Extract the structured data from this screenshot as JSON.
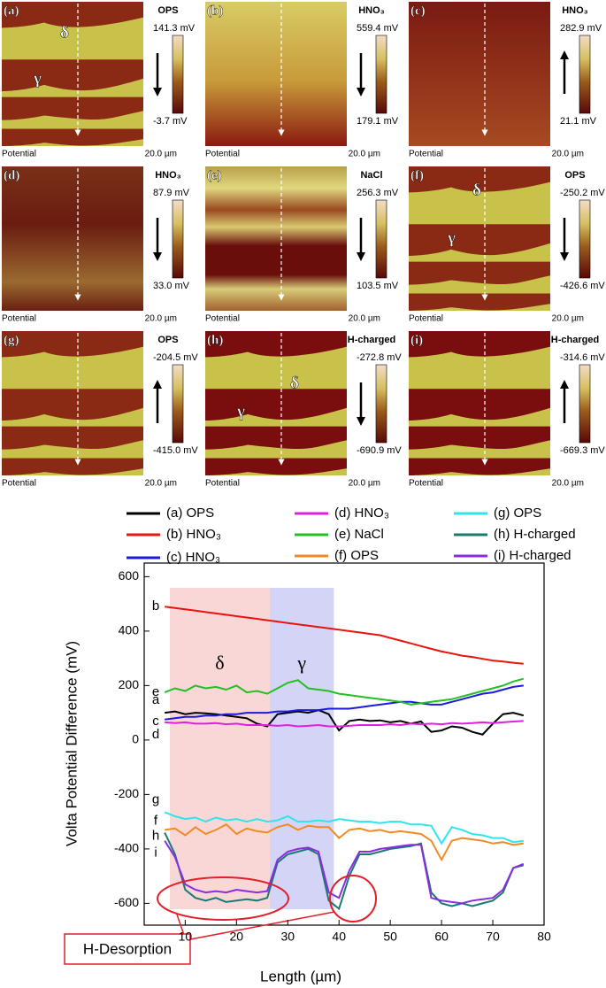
{
  "panels": [
    {
      "label": "(a)",
      "condition": "OPS",
      "max": "141.3 mV",
      "min": "-3.7 mV",
      "arrow": "down",
      "caption": "Potential",
      "scale": "20.0 µm",
      "phases": [
        "δ",
        "γ"
      ]
    },
    {
      "label": "(b)",
      "condition": "HNO₃",
      "max": "559.4 mV",
      "min": "179.1 mV",
      "arrow": "down",
      "caption": "Potential",
      "scale": "20.0 µm"
    },
    {
      "label": "(c)",
      "condition": "HNO₃",
      "max": "282.9 mV",
      "min": "21.1 mV",
      "arrow": "up",
      "caption": "Potential",
      "scale": "20.0 µm"
    },
    {
      "label": "(d)",
      "condition": "HNO₃",
      "max": "87.9 mV",
      "min": "33.0 mV",
      "arrow": "down",
      "caption": "Potential",
      "scale": "20.0 µm"
    },
    {
      "label": "(e)",
      "condition": "NaCl",
      "max": "256.3 mV",
      "min": "103.5 mV",
      "arrow": "down",
      "caption": "Potential",
      "scale": "20.0 µm"
    },
    {
      "label": "(f)",
      "condition": "OPS",
      "max": "-250.2 mV",
      "min": "-426.6 mV",
      "arrow": "down",
      "caption": "Potential",
      "scale": "20.0 µm",
      "phases": [
        "δ",
        "γ"
      ]
    },
    {
      "label": "(g)",
      "condition": "OPS",
      "max": "-204.5 mV",
      "min": "-415.0 mV",
      "arrow": "up",
      "caption": "Potential",
      "scale": "20.0 µm"
    },
    {
      "label": "(h)",
      "condition": "H-charged",
      "max": "-272.8 mV",
      "min": "-690.9 mV",
      "arrow": "down",
      "caption": "Potential",
      "scale": "20.0 µm",
      "phases": [
        "δ",
        "γ"
      ]
    },
    {
      "label": "(i)",
      "condition": "H-charged",
      "max": "-314.6 mV",
      "min": "-669.3 mV",
      "arrow": "up",
      "caption": "Potential",
      "scale": "20.0 µm"
    }
  ],
  "chart_data": {
    "type": "line",
    "xlabel": "Length (µm)",
    "ylabel": "Volta Potential Difference (mV)",
    "xlim": [
      2,
      80
    ],
    "xticks": [
      10,
      20,
      30,
      40,
      50,
      60,
      70,
      80
    ],
    "ylim": [
      -680,
      650
    ],
    "yticks": [
      -600,
      -400,
      -200,
      0,
      200,
      400,
      600
    ],
    "regions": [
      {
        "label": "δ",
        "start": 7,
        "end": 26.5,
        "color": "#f9d3d3"
      },
      {
        "label": "γ",
        "start": 26.5,
        "end": 39,
        "color": "#cfd0f5"
      }
    ],
    "annotation": "H-Desorption",
    "x": [
      6,
      8,
      10,
      12,
      14,
      16,
      18,
      20,
      22,
      24,
      26,
      28,
      30,
      32,
      34,
      36,
      38,
      40,
      42,
      44,
      46,
      48,
      50,
      52,
      54,
      56,
      58,
      60,
      62,
      64,
      66,
      68,
      70,
      72,
      74,
      76
    ],
    "series": [
      {
        "name": "(a) OPS",
        "label": "a",
        "color": "#000000",
        "values": [
          100,
          105,
          95,
          100,
          98,
          95,
          90,
          85,
          80,
          60,
          50,
          95,
          100,
          105,
          100,
          110,
          95,
          35,
          70,
          75,
          70,
          72,
          65,
          70,
          60,
          68,
          30,
          35,
          50,
          45,
          30,
          20,
          60,
          95,
          100,
          90
        ]
      },
      {
        "name": "(b) HNO₃",
        "label": "b",
        "color": "#e8140f",
        "values": [
          490,
          485,
          480,
          475,
          470,
          465,
          460,
          455,
          450,
          445,
          440,
          435,
          430,
          425,
          420,
          415,
          410,
          405,
          400,
          395,
          390,
          385,
          375,
          365,
          355,
          345,
          335,
          325,
          318,
          310,
          305,
          298,
          292,
          288,
          284,
          280
        ]
      },
      {
        "name": "(c) HNO₃",
        "label": "c",
        "color": "#1a1ae0",
        "values": [
          75,
          80,
          85,
          85,
          90,
          90,
          95,
          95,
          100,
          100,
          100,
          105,
          105,
          110,
          110,
          110,
          115,
          115,
          115,
          120,
          125,
          130,
          135,
          140,
          140,
          135,
          130,
          130,
          140,
          150,
          160,
          170,
          175,
          185,
          195,
          200
        ]
      },
      {
        "name": "(d) HNO₃",
        "label": "d",
        "color": "#e020e0",
        "values": [
          65,
          62,
          65,
          60,
          60,
          62,
          58,
          60,
          55,
          55,
          55,
          52,
          55,
          50,
          52,
          55,
          50,
          50,
          52,
          55,
          55,
          55,
          58,
          55,
          60,
          58,
          60,
          58,
          62,
          60,
          62,
          65,
          62,
          65,
          68,
          70
        ]
      },
      {
        "name": "(e) NaCl",
        "label": "e",
        "color": "#22c022",
        "values": [
          175,
          190,
          180,
          200,
          190,
          195,
          185,
          200,
          175,
          180,
          170,
          190,
          210,
          220,
          190,
          185,
          180,
          170,
          165,
          160,
          155,
          150,
          145,
          140,
          130,
          135,
          140,
          145,
          150,
          160,
          170,
          180,
          190,
          200,
          215,
          225
        ]
      },
      {
        "name": "(f) OPS",
        "label": "f",
        "color": "#f08a24",
        "values": [
          -330,
          -325,
          -350,
          -320,
          -345,
          -330,
          -310,
          -345,
          -325,
          -335,
          -340,
          -320,
          -310,
          -330,
          -315,
          -320,
          -320,
          -360,
          -330,
          -325,
          -335,
          -330,
          -340,
          -335,
          -340,
          -345,
          -370,
          -440,
          -370,
          -360,
          -365,
          -370,
          -380,
          -375,
          -385,
          -380
        ]
      },
      {
        "name": "(g) OPS",
        "label": "g",
        "color": "#2ee6ea",
        "values": [
          -265,
          -280,
          -290,
          -285,
          -300,
          -285,
          -295,
          -290,
          -300,
          -290,
          -300,
          -295,
          -280,
          -300,
          -300,
          -295,
          -300,
          -290,
          -295,
          -300,
          -300,
          -305,
          -300,
          -300,
          -310,
          -310,
          -315,
          -380,
          -320,
          -330,
          -345,
          -350,
          -360,
          -360,
          -375,
          -370
        ]
      },
      {
        "name": "(h) H-charged",
        "label": "h",
        "color": "#1a7a72",
        "values": [
          -340,
          -420,
          -550,
          -580,
          -590,
          -580,
          -595,
          -590,
          -585,
          -590,
          -580,
          -450,
          -420,
          -410,
          -400,
          -420,
          -590,
          -620,
          -500,
          -420,
          -420,
          -410,
          -400,
          -395,
          -390,
          -380,
          -560,
          -600,
          -610,
          -600,
          -610,
          -600,
          -590,
          -560,
          -470,
          -460
        ]
      },
      {
        "name": "(i) H-charged",
        "label": "i",
        "color": "#8a2ce0",
        "values": [
          -370,
          -430,
          -530,
          -550,
          -560,
          -555,
          -560,
          -550,
          -555,
          -560,
          -555,
          -440,
          -410,
          -400,
          -395,
          -410,
          -560,
          -580,
          -480,
          -410,
          -410,
          -400,
          -395,
          -390,
          -385,
          -385,
          -580,
          -590,
          -595,
          -600,
          -590,
          -585,
          -580,
          -550,
          -470,
          -455
        ]
      }
    ]
  }
}
